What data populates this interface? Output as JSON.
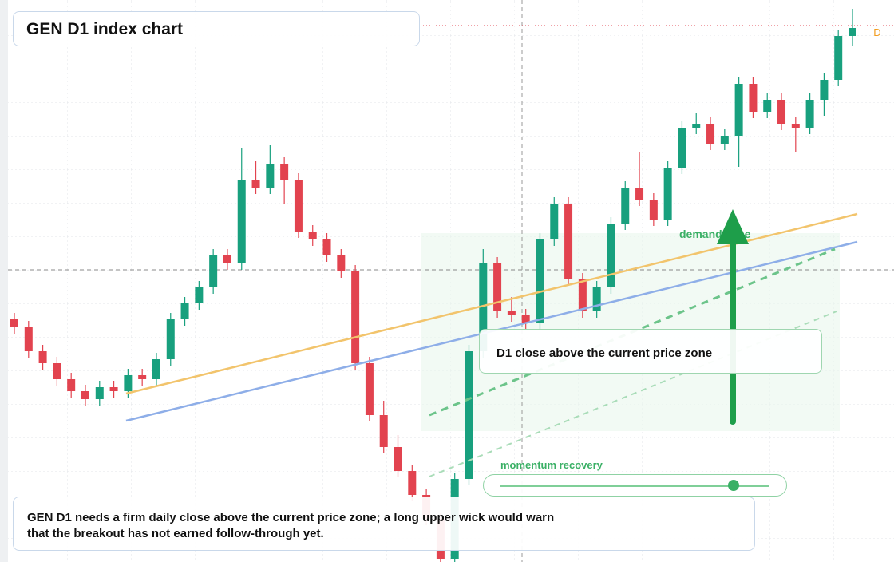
{
  "header": {
    "title": "GEN D1 index chart"
  },
  "chart_data": {
    "type": "candlestick",
    "ylim": [
      0,
      70.4
    ],
    "up_color": "#18a07e",
    "down_color": "#e2434f",
    "ohlc": [
      [
        30.4,
        31.2,
        28.6,
        29.4
      ],
      [
        29.4,
        30.2,
        25.6,
        26.4
      ],
      [
        26.4,
        27.2,
        24.1,
        24.9
      ],
      [
        24.9,
        25.7,
        22.1,
        22.9
      ],
      [
        22.9,
        23.7,
        20.6,
        21.4
      ],
      [
        21.4,
        22.2,
        19.6,
        20.4
      ],
      [
        20.4,
        22.7,
        19.6,
        21.9
      ],
      [
        21.9,
        22.7,
        20.6,
        21.4
      ],
      [
        21.4,
        24.2,
        20.6,
        23.4
      ],
      [
        23.4,
        24.2,
        22.1,
        22.9
      ],
      [
        22.9,
        26.2,
        22.1,
        25.4
      ],
      [
        25.4,
        31.2,
        24.6,
        30.4
      ],
      [
        30.4,
        33.2,
        29.6,
        32.4
      ],
      [
        32.4,
        35.2,
        31.6,
        34.4
      ],
      [
        34.4,
        39.2,
        33.6,
        38.4
      ],
      [
        38.4,
        39.2,
        36.6,
        37.4
      ],
      [
        37.4,
        51.9,
        36.6,
        47.9
      ],
      [
        47.9,
        50.2,
        46.1,
        46.9
      ],
      [
        46.9,
        52.2,
        46.1,
        49.9
      ],
      [
        49.9,
        50.7,
        44.9,
        47.9
      ],
      [
        47.9,
        48.7,
        40.6,
        41.4
      ],
      [
        41.4,
        42.2,
        39.6,
        40.4
      ],
      [
        40.4,
        41.2,
        37.6,
        38.4
      ],
      [
        38.4,
        39.2,
        35.6,
        36.4
      ],
      [
        36.4,
        37.2,
        24.1,
        24.9
      ],
      [
        24.9,
        25.7,
        17.6,
        18.4
      ],
      [
        18.4,
        20.2,
        13.6,
        14.4
      ],
      [
        14.4,
        15.9,
        10.6,
        11.4
      ],
      [
        11.4,
        12.2,
        7.6,
        8.4
      ],
      [
        8.4,
        9.2,
        4.6,
        5.4
      ],
      [
        5.4,
        6.2,
        0,
        0.4
      ],
      [
        0.4,
        11.2,
        0,
        10.4
      ],
      [
        10.4,
        27.2,
        9.6,
        26.4
      ],
      [
        26.4,
        39.2,
        25.6,
        37.4
      ],
      [
        37.4,
        38.2,
        30.6,
        31.4
      ],
      [
        31.4,
        33.2,
        30.1,
        30.9
      ],
      [
        30.9,
        31.7,
        29.1,
        29.9
      ],
      [
        29.9,
        41.2,
        29.1,
        40.4
      ],
      [
        40.4,
        45.7,
        39.6,
        44.9
      ],
      [
        44.9,
        45.7,
        34.6,
        35.4
      ],
      [
        35.4,
        36.2,
        30.6,
        31.4
      ],
      [
        31.4,
        35.2,
        30.6,
        34.4
      ],
      [
        34.4,
        43.2,
        33.6,
        42.4
      ],
      [
        42.4,
        47.7,
        41.6,
        46.9
      ],
      [
        46.9,
        51.4,
        44.6,
        45.4
      ],
      [
        45.4,
        46.2,
        42.1,
        42.9
      ],
      [
        42.9,
        50.2,
        42.1,
        49.4
      ],
      [
        49.4,
        55.2,
        48.6,
        54.4
      ],
      [
        54.4,
        56.2,
        53.6,
        54.9
      ],
      [
        54.9,
        55.7,
        51.6,
        52.4
      ],
      [
        52.4,
        54.2,
        51.6,
        53.4
      ],
      [
        53.4,
        60.7,
        49.5,
        59.9
      ],
      [
        59.9,
        60.7,
        55.6,
        56.4
      ],
      [
        56.4,
        58.7,
        55.6,
        57.9
      ],
      [
        57.9,
        58.7,
        54.1,
        54.9
      ],
      [
        54.9,
        55.7,
        51.4,
        54.4
      ],
      [
        54.4,
        58.7,
        53.6,
        57.9
      ],
      [
        57.9,
        61.2,
        55.9,
        60.4
      ],
      [
        60.4,
        66.7,
        59.6,
        65.9
      ],
      [
        65.9,
        69.3,
        64.6,
        66.9
      ]
    ]
  },
  "annotations": {
    "price_marker": "D",
    "zone_label": "demand zone",
    "callout": "D1 close above the current price zone",
    "slider_label": "momentum recovery",
    "note": [
      "GEN D1 needs a firm daily close above the current price zone; a long upper wick would warn",
      "that the breakout has not earned follow-through yet."
    ]
  }
}
